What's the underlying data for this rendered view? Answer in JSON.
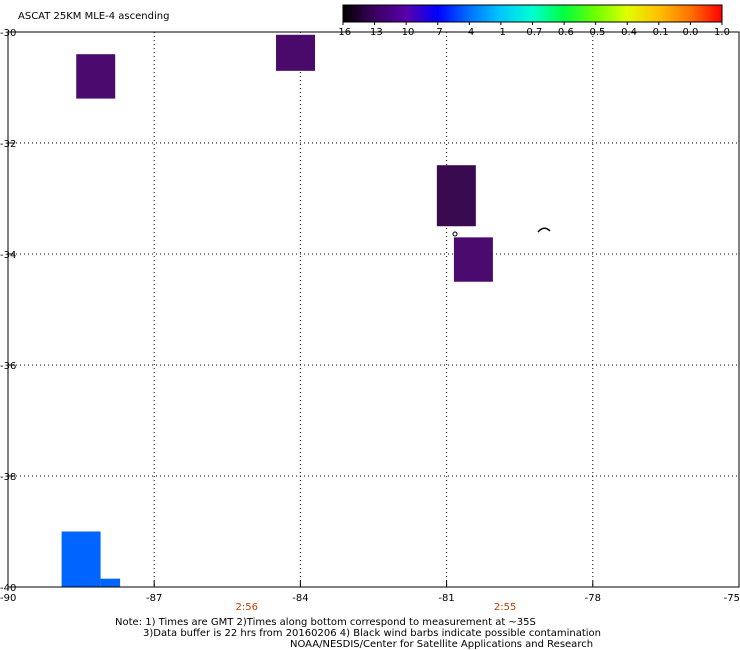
{
  "chart_data": {
    "type": "heatmap",
    "title": "ASCAT 25KM MLE-4 ascending",
    "xlim": [
      -90,
      -75
    ],
    "ylim": [
      -40,
      -30
    ],
    "x_ticks": [
      -90,
      -87,
      -84,
      -81,
      -78,
      -75
    ],
    "y_ticks": [
      -30,
      -32,
      -34,
      -36,
      -38,
      -40
    ],
    "x_tick_labels": [
      "-90",
      "-87",
      "-84",
      "-81",
      "-78",
      "-75"
    ],
    "y_tick_labels": [
      "-30",
      "-32",
      "-34",
      "-36",
      "-38",
      "-40"
    ],
    "grid": true,
    "colorbar": {
      "labels": [
        "-16",
        "-13",
        "-10",
        "-7",
        "-4",
        "-1",
        "-0.7",
        "-0.6",
        "-0.5",
        "-0.4",
        "-0.1",
        "0.0",
        "1.0"
      ],
      "colors": [
        "#000000",
        "#3a0060",
        "#5800a8",
        "#0000ff",
        "#0070ff",
        "#00c8ff",
        "#00ffd0",
        "#00ff40",
        "#70ff00",
        "#e0ff00",
        "#ffc000",
        "#ff7000",
        "#ff0000"
      ]
    },
    "cells": [
      {
        "lon0": -88.6,
        "lon1": -87.8,
        "lat0": -31.2,
        "lat1": -30.4,
        "color": "#4b0a6e"
      },
      {
        "lon0": -84.5,
        "lon1": -83.7,
        "lat0": -30.7,
        "lat1": -30.05,
        "color": "#4a0a6c"
      },
      {
        "lon0": -81.2,
        "lon1": -80.4,
        "lat0": -33.5,
        "lat1": -32.4,
        "color": "#3a0a50"
      },
      {
        "lon0": -80.85,
        "lon1": -80.05,
        "lat0": -34.5,
        "lat1": -33.7,
        "color": "#4b0a6e"
      },
      {
        "lon0": -88.9,
        "lon1": -88.1,
        "lat0": -40.0,
        "lat1": -39.0,
        "color": "#0064ff"
      },
      {
        "lon0": -88.1,
        "lon1": -87.7,
        "lat0": -40.0,
        "lat1": -39.85,
        "color": "#0064ff"
      }
    ],
    "time_labels": [
      {
        "lon": -85.1,
        "text": "2:56"
      },
      {
        "lon": -79.8,
        "text": "2:55"
      }
    ],
    "time_color": "#c83c00"
  },
  "notes": {
    "line1": "Note: 1) Times are GMT 2)Times along bottom correspond to measurement at ~35S",
    "line2": "3)Data buffer is 22 hrs from 20160206 4) Black wind barbs indicate possible contamination",
    "line3": "NOAA/NESDIS/Center for Satellite Applications and Research"
  }
}
